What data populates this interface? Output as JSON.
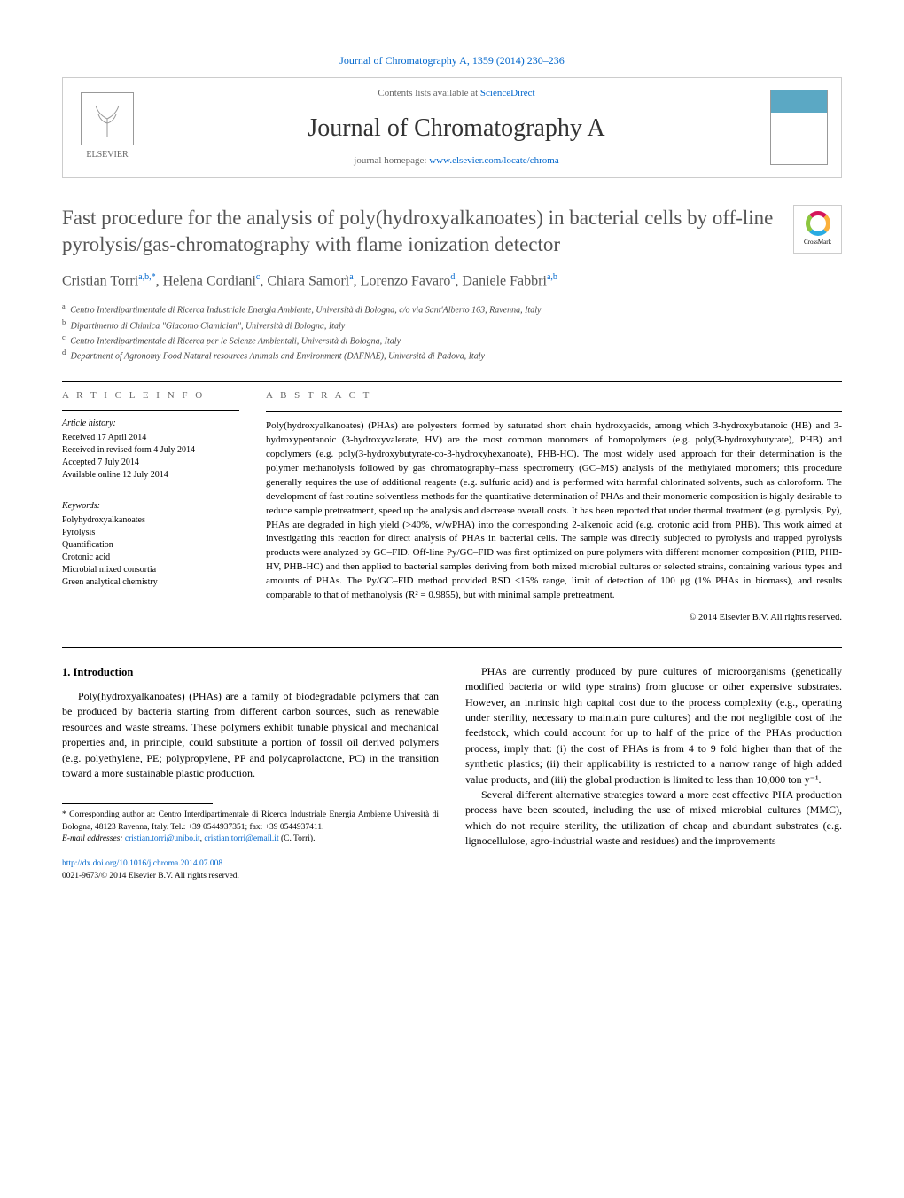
{
  "journal_ref": "Journal of Chromatography A, 1359 (2014) 230–236",
  "header": {
    "publisher": "ELSEVIER",
    "contents_prefix": "Contents lists available at ",
    "contents_link": "ScienceDirect",
    "journal_name": "Journal of Chromatography A",
    "homepage_prefix": "journal homepage: ",
    "homepage_url": "www.elsevier.com/locate/chroma"
  },
  "crossmark_label": "CrossMark",
  "title": "Fast procedure for the analysis of poly(hydroxyalkanoates) in bacterial cells by off-line pyrolysis/gas-chromatography with flame ionization detector",
  "authors_html": "Cristian Torri<sup>a,b,*</sup>, Helena Cordiani<sup>c</sup>, Chiara Samorì<sup>a</sup>, Lorenzo Favaro<sup>d</sup>, Daniele Fabbri<sup>a,b</sup>",
  "affiliations": [
    {
      "sup": "a",
      "text": "Centro Interdipartimentale di Ricerca Industriale Energia Ambiente, Università di Bologna, c/o via Sant'Alberto 163, Ravenna, Italy"
    },
    {
      "sup": "b",
      "text": "Dipartimento di Chimica \"Giacomo Ciamician\", Università di Bologna, Italy"
    },
    {
      "sup": "c",
      "text": "Centro Interdipartimentale di Ricerca per le Scienze Ambientali, Università di Bologna, Italy"
    },
    {
      "sup": "d",
      "text": "Department of Agronomy Food Natural resources Animals and Environment (DAFNAE), Università di Padova, Italy"
    }
  ],
  "article_info": {
    "heading": "A R T I C L E   I N F O",
    "history_head": "Article history:",
    "history": [
      "Received 17 April 2014",
      "Received in revised form 4 July 2014",
      "Accepted 7 July 2014",
      "Available online 12 July 2014"
    ],
    "keywords_head": "Keywords:",
    "keywords": [
      "Polyhydroxyalkanoates",
      "Pyrolysis",
      "Quantification",
      "Crotonic acid",
      "Microbial mixed consortia",
      "Green analytical chemistry"
    ]
  },
  "abstract": {
    "heading": "A B S T R A C T",
    "text": "Poly(hydroxyalkanoates) (PHAs) are polyesters formed by saturated short chain hydroxyacids, among which 3-hydroxybutanoic (HB) and 3-hydroxypentanoic (3-hydroxyvalerate, HV) are the most common monomers of homopolymers (e.g. poly(3-hydroxybutyrate), PHB) and copolymers (e.g. poly(3-hydroxybutyrate-co-3-hydroxyhexanoate), PHB-HC). The most widely used approach for their determination is the polymer methanolysis followed by gas chromatography–mass spectrometry (GC–MS) analysis of the methylated monomers; this procedure generally requires the use of additional reagents (e.g. sulfuric acid) and is performed with harmful chlorinated solvents, such as chloroform. The development of fast routine solventless methods for the quantitative determination of PHAs and their monomeric composition is highly desirable to reduce sample pretreatment, speed up the analysis and decrease overall costs. It has been reported that under thermal treatment (e.g. pyrolysis, Py), PHAs are degraded in high yield (>40%, w/wPHA) into the corresponding 2-alkenoic acid (e.g. crotonic acid from PHB). This work aimed at investigating this reaction for direct analysis of PHAs in bacterial cells. The sample was directly subjected to pyrolysis and trapped pyrolysis products were analyzed by GC–FID. Off-line Py/GC–FID was first optimized on pure polymers with different monomer composition (PHB, PHB-HV, PHB-HC) and then applied to bacterial samples deriving from both mixed microbial cultures or selected strains, containing various types and amounts of PHAs. The Py/GC–FID method provided RSD <15% range, limit of detection of 100 μg (1% PHAs in biomass), and results comparable to that of methanolysis (R² = 0.9855), but with minimal sample pretreatment.",
    "copyright": "© 2014 Elsevier B.V. All rights reserved."
  },
  "intro": {
    "heading": "1. Introduction",
    "p1": "Poly(hydroxyalkanoates) (PHAs) are a family of biodegradable polymers that can be produced by bacteria starting from different carbon sources, such as renewable resources and waste streams. These polymers exhibit tunable physical and mechanical properties and, in principle, could substitute a portion of fossil oil derived polymers (e.g. polyethylene, PE; polypropylene, PP and polycaprolactone, PC) in the transition toward a more sustainable plastic production.",
    "p2": "PHAs are currently produced by pure cultures of microorganisms (genetically modified bacteria or wild type strains) from glucose or other expensive substrates. However, an intrinsic high capital cost due to the process complexity (e.g., operating under sterility, necessary to maintain pure cultures) and the not negligible cost of the feedstock, which could account for up to half of the price of the PHAs production process, imply that: (i) the cost of PHAs is from 4 to 9 fold higher than that of the synthetic plastics; (ii) their applicability is restricted to a narrow range of high added value products, and (iii) the global production is limited to less than 10,000 ton y⁻¹.",
    "p3": "Several different alternative strategies toward a more cost effective PHA production process have been scouted, including the use of mixed microbial cultures (MMC), which do not require sterility, the utilization of cheap and abundant substrates (e.g. lignocellulose, agro-industrial waste and residues) and the improvements"
  },
  "footnotes": {
    "corr": "* Corresponding author at: Centro Interdipartimentale di Ricerca Industriale Energia Ambiente Università di Bologna, 48123 Ravenna, Italy. Tel.: +39 0544937351; fax: +39 0544937411.",
    "email_label": "E-mail addresses: ",
    "email1": "cristian.torri@unibo.it",
    "email2": "cristian.torri@email.it",
    "email_who": " (C. Torri)."
  },
  "bottom": {
    "doi": "http://dx.doi.org/10.1016/j.chroma.2014.07.008",
    "issn_line": "0021-9673/© 2014 Elsevier B.V. All rights reserved."
  },
  "colors": {
    "link": "#0066cc",
    "text": "#000000",
    "title_grey": "#555555"
  }
}
